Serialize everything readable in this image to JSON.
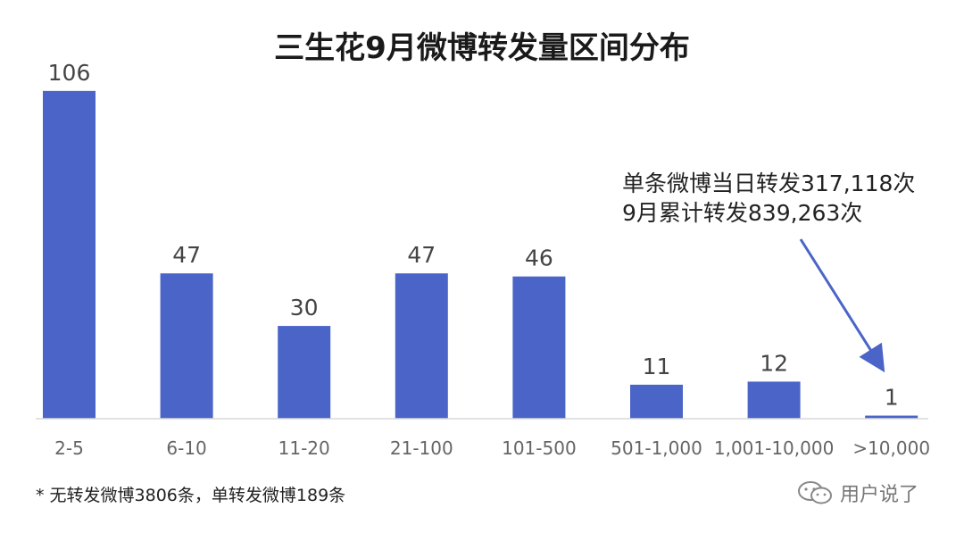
{
  "chart_data": {
    "type": "bar",
    "title": "三生花9月微博转发量区间分布",
    "categories": [
      "2-5",
      "6-10",
      "11-20",
      "21-100",
      "101-500",
      "501-1,000",
      "1,001-10,000",
      ">10,000"
    ],
    "values": [
      106,
      47,
      30,
      47,
      46,
      11,
      12,
      1
    ],
    "bar_color": "#4a64c8",
    "ylim": [
      0,
      110
    ],
    "grid": false,
    "annotation": {
      "lines": [
        "单条微博当日转发317,118次",
        "9月累计转发839,263次"
      ],
      "target_category": ">10,000"
    }
  },
  "footnote": "* 无转发微博3806条，单转发微博189条",
  "watermark": {
    "text": "用户说了",
    "icon": "wechat-icon"
  }
}
